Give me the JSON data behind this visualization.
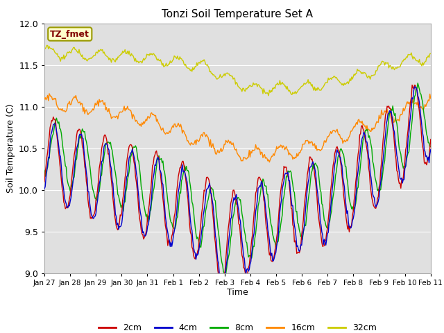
{
  "title": "Tonzi Soil Temperature Set A",
  "xlabel": "Time",
  "ylabel": "Soil Temperature (C)",
  "ylim": [
    9.0,
    12.0
  ],
  "yticks": [
    9.0,
    9.5,
    10.0,
    10.5,
    11.0,
    11.5,
    12.0
  ],
  "plot_bg_color": "#e0e0e0",
  "fig_color": "#ffffff",
  "legend_label": "TZ_fmet",
  "legend_box_color": "#ffffcc",
  "legend_box_edge": "#999900",
  "legend_text_color": "#800000",
  "series_colors": {
    "2cm": "#cc0000",
    "4cm": "#0000cc",
    "8cm": "#00aa00",
    "16cm": "#ff8800",
    "32cm": "#cccc00"
  },
  "xtick_labels": [
    "Jan 27",
    "Jan 28",
    "Jan 29",
    "Jan 30",
    "Jan 31",
    "Feb 1",
    "Feb 2",
    "Feb 3",
    "Feb 4",
    "Feb 5",
    "Feb 6",
    "Feb 7",
    "Feb 8",
    "Feb 9",
    "Feb 10",
    "Feb 11"
  ],
  "num_points": 480,
  "days": 15
}
